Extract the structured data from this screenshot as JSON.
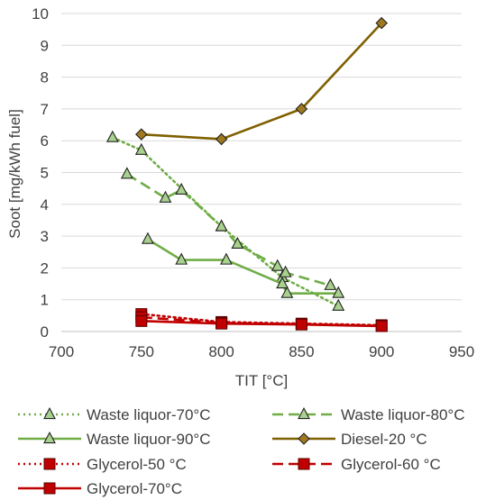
{
  "chart_data": {
    "type": "line",
    "title": "",
    "xlabel": "TIT [°C]",
    "ylabel": "Soot [mg/kWh fuel]",
    "xlim": [
      700,
      950
    ],
    "ylim": [
      0,
      10
    ],
    "xticks": [
      700,
      750,
      800,
      850,
      900,
      950
    ],
    "yticks": [
      0,
      1,
      2,
      3,
      4,
      5,
      6,
      7,
      8,
      9,
      10
    ],
    "grid": "horizontal",
    "legend_position": "bottom",
    "series": [
      {
        "name": "Waste liquor-70°C",
        "marker": "triangle",
        "line": "dotted",
        "color": "#70AD47",
        "marker_fill": "#A9D18E",
        "x": [
          732,
          750,
          800,
          838,
          873
        ],
        "y": [
          6.1,
          5.7,
          3.3,
          1.7,
          0.8
        ]
      },
      {
        "name": "Waste liquor-80°C",
        "marker": "triangle",
        "line": "dashed",
        "color": "#70AD47",
        "marker_fill": "#A9D18E",
        "x": [
          741,
          765,
          775,
          800,
          810,
          835,
          840,
          868
        ],
        "y": [
          4.95,
          4.2,
          4.45,
          3.3,
          2.75,
          2.05,
          1.85,
          1.45
        ]
      },
      {
        "name": "Waste liquor-90°C",
        "marker": "triangle",
        "line": "solid",
        "color": "#70AD47",
        "marker_fill": "#A9D18E",
        "x": [
          754,
          775,
          803,
          838,
          841,
          873
        ],
        "y": [
          2.9,
          2.25,
          2.25,
          1.5,
          1.2,
          1.2
        ]
      },
      {
        "name": "Diesel-20 °C",
        "marker": "diamond",
        "line": "solid",
        "color": "#7F6000",
        "marker_fill": "#A07820",
        "x": [
          750,
          800,
          850,
          900
        ],
        "y": [
          6.2,
          6.05,
          7.0,
          9.7
        ]
      },
      {
        "name": "Glycerol-50 °C",
        "marker": "square",
        "line": "dotted",
        "color": "#C00000",
        "marker_fill": "#C00000",
        "x": [
          750,
          800,
          850,
          900
        ],
        "y": [
          0.55,
          0.3,
          0.25,
          0.2
        ]
      },
      {
        "name": "Glycerol-60 °C",
        "marker": "square",
        "line": "dashed",
        "color": "#C00000",
        "marker_fill": "#C00000",
        "x": [
          750,
          800,
          850,
          900
        ],
        "y": [
          0.45,
          0.27,
          0.23,
          0.18
        ]
      },
      {
        "name": "Glycerol-70°C",
        "marker": "square",
        "line": "solid",
        "color": "#C00000",
        "marker_fill": "#C00000",
        "x": [
          750,
          800,
          850,
          900
        ],
        "y": [
          0.33,
          0.25,
          0.22,
          0.17
        ]
      }
    ]
  }
}
